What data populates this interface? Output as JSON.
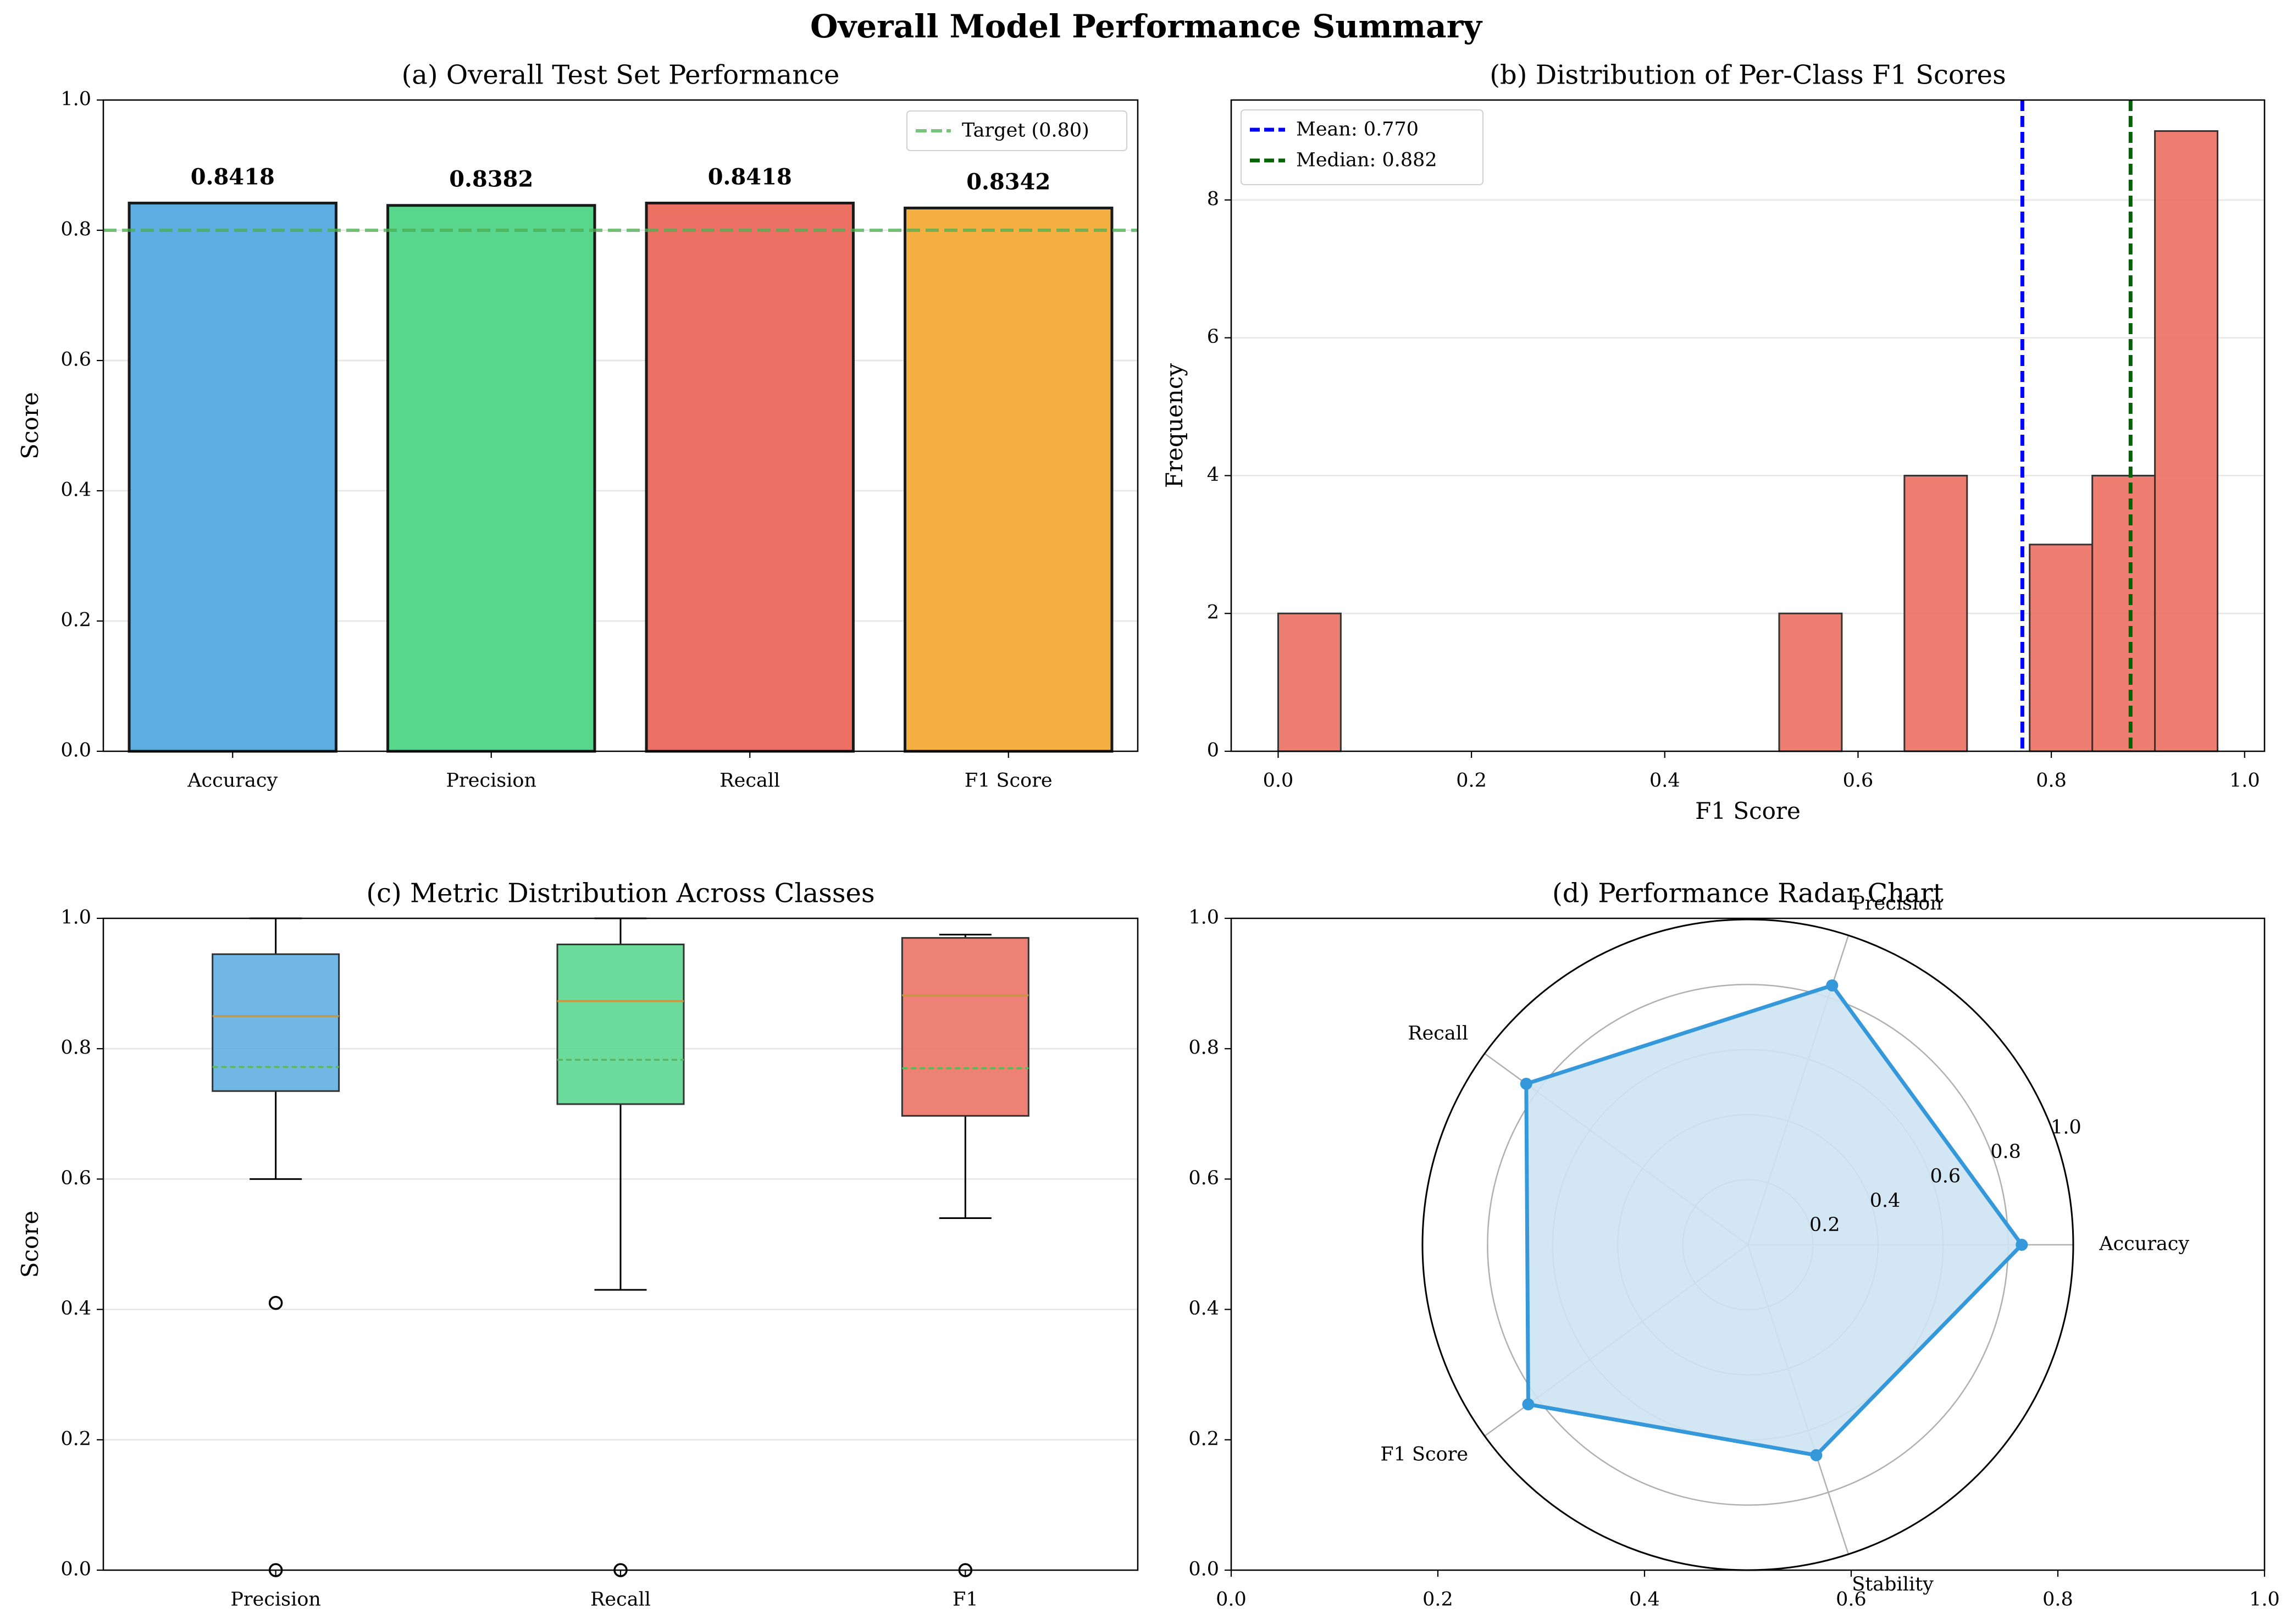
{
  "title": "Overall Model Performance Summary",
  "chart_data": [
    {
      "panel": "a",
      "type": "bar",
      "title": "(a) Overall Test Set Performance",
      "categories": [
        "Accuracy",
        "Precision",
        "Recall",
        "F1 Score"
      ],
      "values": [
        0.8418,
        0.8382,
        0.8418,
        0.8342
      ],
      "value_labels": [
        "0.8418",
        "0.8382",
        "0.8418",
        "0.8342"
      ],
      "colors": [
        "#5dade2",
        "#58d68d",
        "#ec7063",
        "#f5b041"
      ],
      "xlabel": "",
      "ylabel": "Score",
      "ylim": [
        0,
        1.0
      ],
      "yticks": [
        "0.0",
        "0.2",
        "0.4",
        "0.6",
        "0.8",
        "1.0"
      ],
      "reference_line": {
        "label": "Target (0.80)",
        "value": 0.8,
        "color": "#4caf50"
      },
      "legend_position": "top-right",
      "grid": "y"
    },
    {
      "panel": "b",
      "type": "bar",
      "subtype": "histogram",
      "title": "(b) Distribution of Per-Class F1 Scores",
      "bins": [
        {
          "x0": 0.0,
          "x1": 0.0648,
          "count": 2
        },
        {
          "x0": 0.5184,
          "x1": 0.5832,
          "count": 2
        },
        {
          "x0": 0.648,
          "x1": 0.7128,
          "count": 4
        },
        {
          "x0": 0.7776,
          "x1": 0.8424,
          "count": 3
        },
        {
          "x0": 0.8424,
          "x1": 0.9072,
          "count": 4
        },
        {
          "x0": 0.9072,
          "x1": 0.972,
          "count": 9
        }
      ],
      "bar_color": "#ec7063",
      "xlabel": "F1 Score",
      "ylabel": "Frequency",
      "xlim": [
        -0.0486,
        1.0206
      ],
      "ylim": [
        0,
        9.45
      ],
      "xticks": [
        "0.0",
        "0.2",
        "0.4",
        "0.6",
        "0.8",
        "1.0"
      ],
      "yticks": [
        "0",
        "2",
        "4",
        "6",
        "8"
      ],
      "reference_lines": [
        {
          "label": "Mean: 0.770",
          "value": 0.77,
          "color": "#0000ff"
        },
        {
          "label": "Median: 0.882",
          "value": 0.882,
          "color": "#006400"
        }
      ],
      "legend_position": "top-left",
      "grid": "y"
    },
    {
      "panel": "c",
      "type": "boxplot",
      "title": "(c) Metric Distribution Across Classes",
      "categories": [
        "Precision",
        "Recall",
        "F1"
      ],
      "boxes": [
        {
          "whisker_low": 0.6,
          "q1": 0.735,
          "median": 0.85,
          "mean": 0.772,
          "q3": 0.945,
          "whisker_high": 1.0,
          "outliers": [
            0.41,
            0.0
          ],
          "color": "#5dade2"
        },
        {
          "whisker_low": 0.43,
          "q1": 0.715,
          "median": 0.873,
          "mean": 0.783,
          "q3": 0.96,
          "whisker_high": 1.0,
          "outliers": [
            0.0
          ],
          "color": "#58d68d"
        },
        {
          "whisker_low": 0.54,
          "q1": 0.697,
          "median": 0.882,
          "mean": 0.77,
          "q3": 0.97,
          "whisker_high": 0.975,
          "outliers": [
            0.0
          ],
          "color": "#ec7063"
        }
      ],
      "xlabel": "",
      "ylabel": "Score",
      "ylim": [
        0,
        1.0
      ],
      "yticks": [
        "0.0",
        "0.2",
        "0.4",
        "0.6",
        "0.8",
        "1.0"
      ],
      "grid": "y"
    },
    {
      "panel": "d",
      "type": "radar",
      "title": "(d) Performance Radar Chart",
      "axes": [
        "Accuracy",
        "Precision",
        "Recall",
        "F1 Score",
        "Stability"
      ],
      "values": [
        0.8418,
        0.8382,
        0.8418,
        0.8342,
        0.68
      ],
      "rmax": 1.0,
      "rticks": [
        "0.2",
        "0.4",
        "0.6",
        "0.8",
        "1.0"
      ],
      "line_color": "#3498db",
      "fill_color": "#cde4f2",
      "outer_xticks": [
        "0.0",
        "0.2",
        "0.4",
        "0.6",
        "0.8",
        "1.0"
      ],
      "outer_yticks": [
        "0.0",
        "0.2",
        "0.4",
        "0.6",
        "0.8",
        "1.0"
      ]
    }
  ]
}
